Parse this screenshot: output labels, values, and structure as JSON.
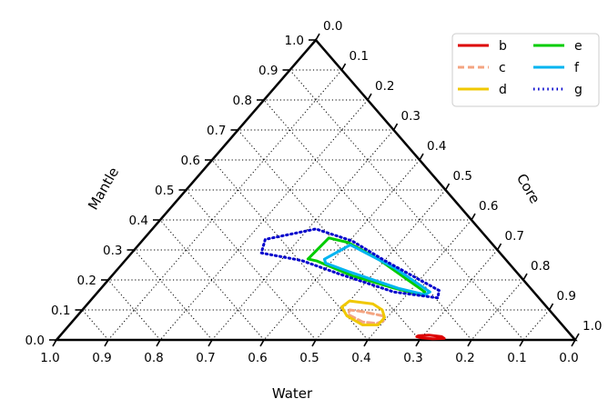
{
  "chart_data": {
    "type": "ternary",
    "axes": {
      "bottom": {
        "label": "Water",
        "ticks": [
          "1.0",
          "0.9",
          "0.8",
          "0.7",
          "0.6",
          "0.5",
          "0.4",
          "0.3",
          "0.2",
          "0.1",
          "0.0"
        ]
      },
      "left": {
        "label": "Mantle",
        "ticks": [
          "0.0",
          "0.1",
          "0.2",
          "0.3",
          "0.4",
          "0.5",
          "0.6",
          "0.7",
          "0.8",
          "0.9",
          "1.0"
        ]
      },
      "right": {
        "label": "Core",
        "ticks": [
          "0.0",
          "0.1",
          "0.2",
          "0.3",
          "0.4",
          "0.5",
          "0.6",
          "0.7",
          "0.8",
          "0.9",
          "1.0"
        ]
      }
    },
    "grid": true,
    "grid_step": 0.1,
    "legend_position": "top-right",
    "series": [
      {
        "name": "b",
        "color": "#dd0000",
        "dash": "solid",
        "contour": [
          [
            0.25,
            0.005,
            0.745
          ],
          [
            0.273,
            0.004,
            0.723
          ],
          [
            0.293,
            0.007,
            0.7
          ],
          [
            0.3,
            0.011,
            0.689
          ],
          [
            0.295,
            0.014,
            0.691
          ],
          [
            0.274,
            0.016,
            0.71
          ],
          [
            0.252,
            0.011,
            0.737
          ]
        ]
      },
      {
        "name": "c",
        "color": "#f4a582",
        "dash": "dashed",
        "contour": [
          [
            0.33,
            0.08,
            0.59
          ],
          [
            0.365,
            0.095,
            0.54
          ],
          [
            0.385,
            0.1,
            0.515
          ],
          [
            0.395,
            0.085,
            0.52
          ],
          [
            0.38,
            0.06,
            0.56
          ],
          [
            0.355,
            0.055,
            0.59
          ],
          [
            0.335,
            0.065,
            0.6
          ]
        ]
      },
      {
        "name": "d",
        "color": "#f0c800",
        "dash": "solid",
        "contour": [
          [
            0.33,
            0.12,
            0.55
          ],
          [
            0.37,
            0.13,
            0.5
          ],
          [
            0.395,
            0.11,
            0.495
          ],
          [
            0.4,
            0.08,
            0.52
          ],
          [
            0.385,
            0.05,
            0.565
          ],
          [
            0.355,
            0.05,
            0.595
          ],
          [
            0.33,
            0.075,
            0.595
          ],
          [
            0.322,
            0.1,
            0.578
          ]
        ]
      },
      {
        "name": "e",
        "color": "#00cc00",
        "dash": "solid",
        "contour": [
          [
            0.21,
            0.16,
            0.63
          ],
          [
            0.245,
            0.27,
            0.485
          ],
          [
            0.275,
            0.325,
            0.4
          ],
          [
            0.305,
            0.34,
            0.355
          ],
          [
            0.38,
            0.27,
            0.35
          ],
          [
            0.366,
            0.263,
            0.371
          ],
          [
            0.323,
            0.214,
            0.463
          ],
          [
            0.262,
            0.172,
            0.566
          ],
          [
            0.22,
            0.15,
            0.63
          ]
        ]
      },
      {
        "name": "f",
        "color": "#00b4f0",
        "dash": "solid",
        "contour": [
          [
            0.2,
            0.16,
            0.64
          ],
          [
            0.228,
            0.24,
            0.532
          ],
          [
            0.275,
            0.317,
            0.408
          ],
          [
            0.349,
            0.269,
            0.382
          ],
          [
            0.353,
            0.256,
            0.391
          ],
          [
            0.322,
            0.227,
            0.451
          ],
          [
            0.255,
            0.172,
            0.573
          ],
          [
            0.214,
            0.151,
            0.635
          ]
        ]
      },
      {
        "name": "g",
        "color": "#0000cc",
        "dash": "dotted",
        "contour": [
          [
            0.18,
            0.165,
            0.655
          ],
          [
            0.235,
            0.265,
            0.5
          ],
          [
            0.265,
            0.33,
            0.405
          ],
          [
            0.315,
            0.37,
            0.315
          ],
          [
            0.43,
            0.335,
            0.235
          ],
          [
            0.46,
            0.29,
            0.25
          ],
          [
            0.395,
            0.265,
            0.34
          ],
          [
            0.345,
            0.22,
            0.435
          ],
          [
            0.27,
            0.16,
            0.57
          ],
          [
            0.195,
            0.14,
            0.665
          ]
        ]
      }
    ]
  }
}
